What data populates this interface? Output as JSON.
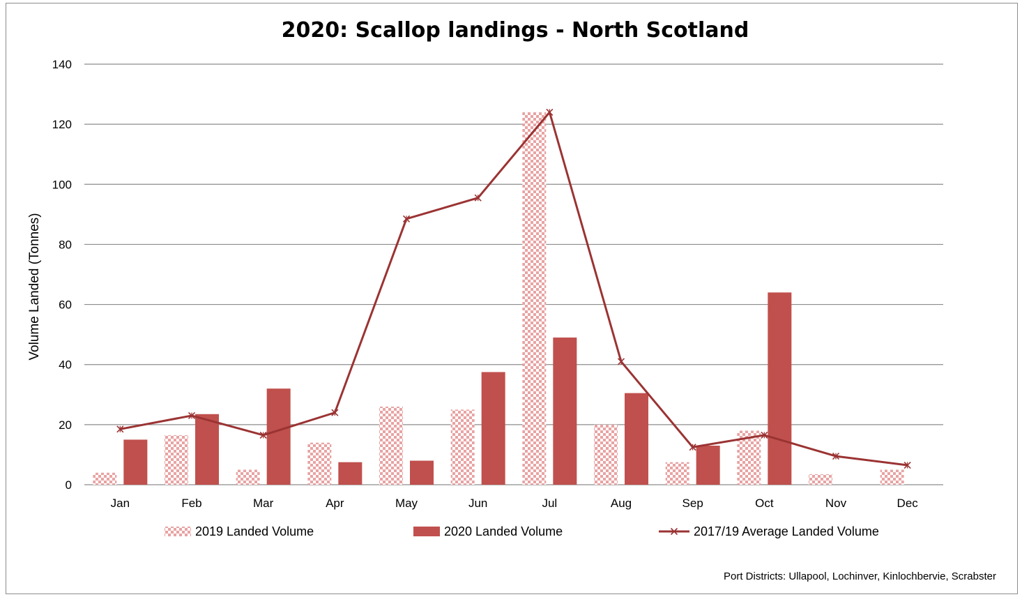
{
  "footnote": "Port Districts:    Ullapool, Lochinver, Kinlochbervie, Scrabster",
  "chart_data": {
    "type": "bar",
    "title": "2020: Scallop landings - North Scotland",
    "xlabel": "",
    "ylabel": "Volume Landed (Tonnes)",
    "ylim": [
      0,
      140
    ],
    "yticks": [
      0,
      20,
      40,
      60,
      80,
      100,
      120,
      140
    ],
    "grid": true,
    "legend_position": "bottom",
    "categories": [
      "Jan",
      "Feb",
      "Mar",
      "Apr",
      "May",
      "Jun",
      "Jul",
      "Aug",
      "Sep",
      "Oct",
      "Nov",
      "Dec"
    ],
    "series": [
      {
        "name": "2019  Landed Volume",
        "kind": "bar",
        "pattern": "checkerboard",
        "color": "#e8a3a3",
        "values": [
          4,
          16.5,
          5,
          14,
          26,
          25,
          124,
          20,
          7.5,
          18,
          3.5,
          5
        ]
      },
      {
        "name": "2020 Landed Volume",
        "kind": "bar",
        "color": "#c0504d",
        "values": [
          15,
          23.5,
          32,
          7.5,
          8,
          37.5,
          49,
          30.5,
          13,
          64,
          0,
          0
        ]
      },
      {
        "name": "2017/19 Average Landed Volume",
        "kind": "line",
        "marker": "x",
        "color": "#9b3333",
        "values": [
          18.5,
          23,
          16.5,
          24,
          88.5,
          95.5,
          124,
          41,
          12.5,
          16.5,
          9.5,
          6.5
        ]
      }
    ]
  }
}
